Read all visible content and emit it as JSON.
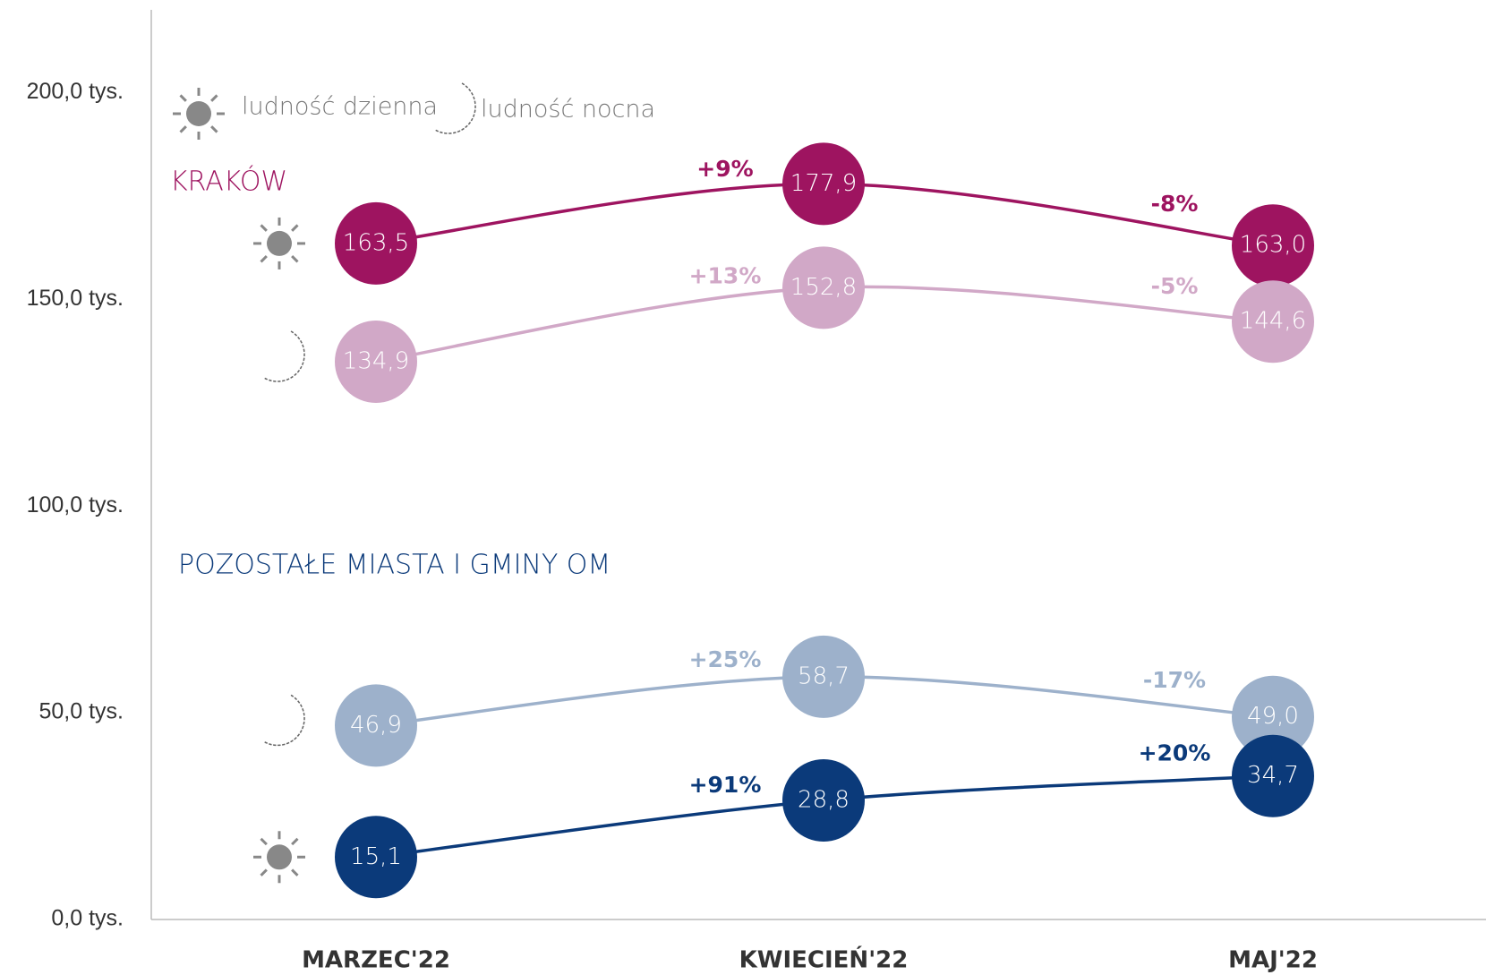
{
  "chart_data": {
    "type": "line",
    "categories": [
      "MARZEC'22",
      "KWIECIEŃ'22",
      "MAJ'22"
    ],
    "ylim": [
      0,
      220
    ],
    "yticks": [
      {
        "value": 0,
        "label": "0,0 tys."
      },
      {
        "value": 50,
        "label": "50,0 tys."
      },
      {
        "value": 100,
        "label": "100,0 tys."
      },
      {
        "value": 150,
        "label": "150,0 tys."
      },
      {
        "value": 200,
        "label": "200,0 tys."
      }
    ],
    "legend": {
      "day": "ludność dzienna",
      "night": "ludność nocna"
    },
    "groups": [
      {
        "label": "KRAKÓW",
        "color": "#9e1460",
        "series": [
          {
            "kind": "day",
            "color": "#9e1460",
            "values": [
              163.5,
              177.9,
              163.0
            ],
            "value_labels": [
              "163,5",
              "177,9",
              "163,0"
            ],
            "changes": [
              "+9%",
              "-8%"
            ],
            "change_color": "#9e1460"
          },
          {
            "kind": "night",
            "color": "#d1a8c7",
            "values": [
              134.9,
              152.8,
              144.6
            ],
            "value_labels": [
              "134,9",
              "152,8",
              "144,6"
            ],
            "changes": [
              "+13%",
              "-5%"
            ],
            "change_color": "#d1a8c7"
          }
        ]
      },
      {
        "label": "POZOSTAŁE MIASTA I GMINY OM",
        "color": "#0b3a7a",
        "series": [
          {
            "kind": "night",
            "color": "#9db1cb",
            "values": [
              46.9,
              58.7,
              49.0
            ],
            "value_labels": [
              "46,9",
              "58,7",
              "49,0"
            ],
            "changes": [
              "+25%",
              "-17%"
            ],
            "change_color": "#9db1cb"
          },
          {
            "kind": "day",
            "color": "#0b3a7a",
            "values": [
              15.1,
              28.8,
              34.7
            ],
            "value_labels": [
              "15,1",
              "28,8",
              "34,7"
            ],
            "changes": [
              "+91%",
              "+20%"
            ],
            "change_color": "#0b3a7a"
          }
        ]
      }
    ]
  }
}
